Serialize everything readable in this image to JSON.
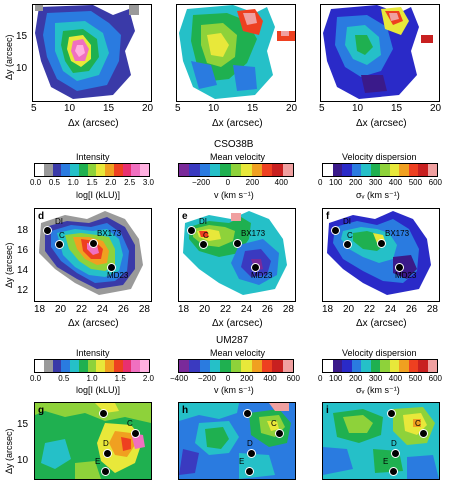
{
  "rows": [
    {
      "id": "top",
      "panels": [
        {
          "letter": "",
          "ylabel": "Δy (arcsec)",
          "xlabel": "Δx (arcsec)",
          "xticks": [
            "5",
            "10",
            "15",
            "20"
          ],
          "yticks": [
            "15",
            "10"
          ]
        },
        {
          "letter": "",
          "ylabel": "",
          "xlabel": "Δx (arcsec)",
          "xticks": [
            "5",
            "10",
            "15",
            "20"
          ],
          "yticks": []
        },
        {
          "letter": "",
          "ylabel": "",
          "xlabel": "Δx (arcsec)",
          "xticks": [
            "5",
            "10",
            "15",
            "20"
          ],
          "yticks": []
        }
      ]
    },
    {
      "id": "cso38b",
      "section_title": "CSO38B",
      "colorbars": [
        {
          "title": "Intensity",
          "ticks": [
            "0.0",
            "0.5",
            "1.0",
            "1.5",
            "2.0",
            "2.5",
            "3.0"
          ],
          "unit": "log[I (kLU)]",
          "colors": [
            "#ffffff",
            "#9a9a9a",
            "#3a3aa8",
            "#2a7be0",
            "#25c0c8",
            "#1fb050",
            "#8ed23a",
            "#e8e83a",
            "#f0a020",
            "#ee4020",
            "#e83070",
            "#f070c0",
            "#ffb0e0"
          ]
        },
        {
          "title": "Mean velocity",
          "ticks": [
            "−200",
            "0",
            "200",
            "400"
          ],
          "unit": "v (km s⁻¹)",
          "colors": [
            "#7a2a9a",
            "#3a3ac0",
            "#2a7be0",
            "#25c0c8",
            "#1fb050",
            "#8ed23a",
            "#e8e83a",
            "#f0a020",
            "#ee4020",
            "#c82020",
            "#f0a0a0"
          ]
        },
        {
          "title": "Velocity dispersion",
          "ticks": [
            "0",
            "100",
            "200",
            "300",
            "400",
            "500",
            "600"
          ],
          "unit": "σᵥ (km s⁻¹)",
          "colors": [
            "#ffffff",
            "#3a1a8a",
            "#2a2ac8",
            "#2a7be0",
            "#25c0c8",
            "#1fb050",
            "#8ed23a",
            "#e8e83a",
            "#f0a020",
            "#ee4020",
            "#c82020",
            "#f0a0a0"
          ]
        }
      ],
      "panels": [
        {
          "letter": "d",
          "ylabel": "Δy (arcsec)",
          "xlabel": "Δx (arcsec)",
          "xticks": [
            "18",
            "20",
            "22",
            "24",
            "26",
            "28"
          ],
          "yticks": [
            "18",
            "16",
            "14",
            "12"
          ],
          "sources": [
            "DI",
            "C",
            "BX173",
            "MD23"
          ]
        },
        {
          "letter": "e",
          "ylabel": "",
          "xlabel": "Δx (arcsec)",
          "xticks": [
            "18",
            "20",
            "22",
            "24",
            "26",
            "28"
          ],
          "yticks": [],
          "sources": [
            "DI",
            "C",
            "BX173",
            "MD23"
          ]
        },
        {
          "letter": "f",
          "ylabel": "",
          "xlabel": "Δx (arcsec)",
          "xticks": [
            "18",
            "20",
            "22",
            "24",
            "26",
            "28"
          ],
          "yticks": [],
          "sources": [
            "DI",
            "C",
            "BX173",
            "MD23"
          ]
        }
      ]
    },
    {
      "id": "um287",
      "section_title": "UM287",
      "colorbars": [
        {
          "title": "Intensity",
          "ticks": [
            "0.0",
            "0.5",
            "1.0",
            "1.5",
            "2.0"
          ],
          "unit": "log[I (kLU)]",
          "colors": [
            "#ffffff",
            "#9a9a9a",
            "#3a3aa8",
            "#2a7be0",
            "#25c0c8",
            "#1fb050",
            "#8ed23a",
            "#e8e83a",
            "#f0a020",
            "#ee4020",
            "#e83070",
            "#f070c0",
            "#ffb0e0"
          ]
        },
        {
          "title": "Mean velocity",
          "ticks": [
            "−400",
            "−200",
            "0",
            "200",
            "400",
            "600"
          ],
          "unit": "v (km s⁻¹)",
          "colors": [
            "#7a2a9a",
            "#3a3ac0",
            "#2a7be0",
            "#25c0c8",
            "#1fb050",
            "#8ed23a",
            "#e8e83a",
            "#f0a020",
            "#ee4020",
            "#c82020",
            "#f0a0a0"
          ]
        },
        {
          "title": "Velocity dispersion",
          "ticks": [
            "0",
            "100",
            "200",
            "300",
            "400",
            "500",
            "600"
          ],
          "unit": "σᵥ (km s⁻¹)",
          "colors": [
            "#ffffff",
            "#3a1a8a",
            "#2a2ac8",
            "#2a7be0",
            "#25c0c8",
            "#1fb050",
            "#8ed23a",
            "#e8e83a",
            "#f0a020",
            "#ee4020",
            "#c82020",
            "#f0a0a0"
          ]
        }
      ],
      "panels": [
        {
          "letter": "g",
          "ylabel": "Δy (arcsec)",
          "xlabel": "",
          "xticks": [],
          "yticks": [
            "15",
            "10"
          ],
          "sources": [
            "C",
            "D",
            "E"
          ]
        },
        {
          "letter": "h",
          "ylabel": "",
          "xlabel": "",
          "xticks": [],
          "yticks": [],
          "sources": [
            "C",
            "D",
            "E"
          ]
        },
        {
          "letter": "i",
          "ylabel": "",
          "xlabel": "",
          "xticks": [],
          "yticks": [],
          "sources": [
            "C",
            "D",
            "E"
          ]
        }
      ]
    }
  ]
}
